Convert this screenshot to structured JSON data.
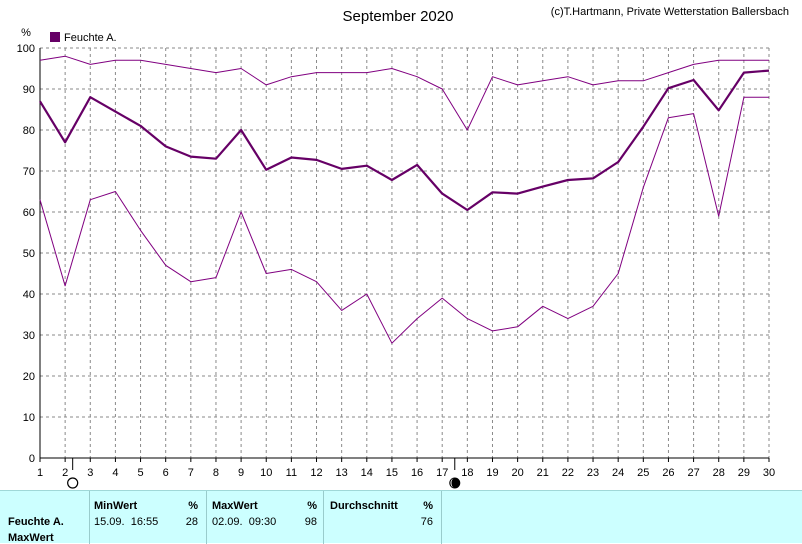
{
  "header": {
    "title": "September 2020",
    "credit": "(c)T.Hartmann, Private Wetterstation Ballersbach"
  },
  "chart_data": {
    "type": "line",
    "title": "September 2020",
    "ylabel": "%",
    "ylim": [
      0,
      100
    ],
    "xlim": [
      1,
      30
    ],
    "y_ticks": [
      0,
      10,
      20,
      30,
      40,
      50,
      60,
      70,
      80,
      90,
      100
    ],
    "x": [
      1,
      2,
      3,
      4,
      5,
      6,
      7,
      8,
      9,
      10,
      11,
      12,
      13,
      14,
      15,
      16,
      17,
      18,
      19,
      20,
      21,
      22,
      23,
      24,
      25,
      26,
      27,
      28,
      29,
      30
    ],
    "grid": true,
    "legend": {
      "position": "top-left",
      "entries": [
        "Feuchte A."
      ],
      "color": "#660066"
    },
    "series": [
      {
        "name": "Feuchte A.",
        "role": "max",
        "color": "#800080",
        "values": [
          97,
          98,
          96,
          97,
          97,
          96,
          95,
          94,
          95,
          91,
          93,
          94,
          94,
          94,
          95,
          93,
          90,
          80,
          93,
          91,
          92,
          93,
          91,
          92,
          92,
          94,
          96,
          97,
          97,
          97
        ]
      },
      {
        "name": "Feuchte A.",
        "role": "avg",
        "color": "#660066",
        "values": [
          87,
          77,
          88,
          84.5,
          81,
          76,
          73.5,
          73,
          80,
          70.3,
          73.3,
          72.7,
          70.5,
          71.3,
          67.8,
          71.5,
          64.5,
          60.5,
          64.8,
          64.5,
          66.2,
          67.8,
          68.2,
          72.2,
          80.8,
          90.2,
          92.2,
          84.8,
          94,
          94.5
        ]
      },
      {
        "name": "Feuchte A.",
        "role": "min",
        "color": "#800080",
        "values": [
          63,
          42,
          63,
          65,
          55.5,
          47,
          43,
          44,
          60,
          45,
          46,
          43,
          36,
          40,
          28,
          34,
          39,
          34,
          31,
          32,
          37,
          34,
          37,
          45,
          66,
          83,
          84,
          59,
          88,
          88
        ]
      }
    ],
    "moon_phases": [
      {
        "day": 2.3,
        "phase": "full-moon"
      },
      {
        "day": 17.5,
        "phase": "new-moon"
      }
    ]
  },
  "stats": {
    "row_label": "Feuchte A.",
    "row_label2": "MaxWert",
    "min": {
      "header": "MinWert",
      "unit": "%",
      "datetime": "15.09.  16:55",
      "value": "28"
    },
    "max": {
      "header": "MaxWert",
      "unit": "%",
      "datetime": "02.09.  09:30",
      "value": "98"
    },
    "avg": {
      "header": "Durchschnitt",
      "unit": "%",
      "value": "76"
    }
  }
}
